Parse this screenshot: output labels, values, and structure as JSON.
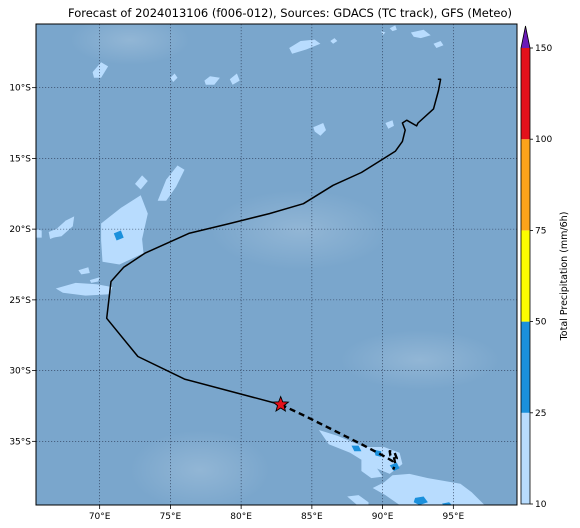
{
  "title": "Forecast of 2024013106 (f006-012), Sources: GDACS (TC track), GFS (Meteo)",
  "map": {
    "lon_range": [
      65.5,
      99.5
    ],
    "lat_range": [
      -39.5,
      -5.5
    ],
    "lon_ticks": [
      {
        "value": 70,
        "label": "70°E"
      },
      {
        "value": 75,
        "label": "75°E"
      },
      {
        "value": 80,
        "label": "80°E"
      },
      {
        "value": 85,
        "label": "85°E"
      },
      {
        "value": 90,
        "label": "90°E"
      },
      {
        "value": 95,
        "label": "95°E"
      }
    ],
    "lat_ticks": [
      {
        "value": -10,
        "label": "10°S"
      },
      {
        "value": -15,
        "label": "15°S"
      },
      {
        "value": -20,
        "label": "20°S"
      },
      {
        "value": -25,
        "label": "25°S"
      },
      {
        "value": -30,
        "label": "30°S"
      },
      {
        "value": -35,
        "label": "35°S"
      }
    ],
    "ocean_color": "#7aa6cc",
    "grid_style": "dotted"
  },
  "track": {
    "past": [
      [
        93.9,
        -9.4
      ],
      [
        94.1,
        -9.4
      ],
      [
        93.95,
        -10.2
      ],
      [
        93.6,
        -11.5
      ],
      [
        92.5,
        -12.5
      ],
      [
        92.4,
        -12.7
      ],
      [
        91.7,
        -12.3
      ],
      [
        91.4,
        -12.5
      ],
      [
        91.6,
        -13.0
      ],
      [
        91.4,
        -13.8
      ],
      [
        90.9,
        -14.5
      ],
      [
        88.5,
        -16.0
      ],
      [
        86.5,
        -16.9
      ],
      [
        84.4,
        -18.2
      ],
      [
        82.0,
        -18.9
      ],
      [
        79.2,
        -19.6
      ],
      [
        76.3,
        -20.3
      ],
      [
        73.2,
        -21.7
      ],
      [
        71.7,
        -22.7
      ],
      [
        70.8,
        -23.7
      ],
      [
        70.5,
        -26.3
      ],
      [
        72.7,
        -29.0
      ],
      [
        76.0,
        -30.6
      ],
      [
        82.8,
        -32.4
      ]
    ],
    "forecast": [
      [
        82.8,
        -32.4
      ],
      [
        84.5,
        -33.2
      ],
      [
        86.5,
        -34.2
      ],
      [
        88.5,
        -35.2
      ],
      [
        90.2,
        -36.1
      ],
      [
        90.7,
        -36.4
      ],
      [
        91.0,
        -36.2
      ],
      [
        90.85,
        -35.8
      ],
      [
        90.5,
        -35.7
      ],
      [
        90.55,
        -36.0
      ],
      [
        90.8,
        -36.1
      ],
      [
        90.9,
        -36.6
      ],
      [
        90.75,
        -37.0
      ]
    ],
    "current_position": {
      "lon": 82.8,
      "lat": -32.4
    },
    "past_color": "#000000",
    "marker_color": "#e3111b"
  },
  "precip_blobs": [
    {
      "level": 1,
      "pts": [
        [
          70.1,
          -19.6
        ],
        [
          71.5,
          -18.5
        ],
        [
          72.9,
          -17.6
        ],
        [
          73.4,
          -18.9
        ],
        [
          73.0,
          -20.7
        ],
        [
          73.1,
          -21.7
        ],
        [
          71.4,
          -22.5
        ],
        [
          70.2,
          -22.3
        ],
        [
          70.1,
          -20.8
        ]
      ]
    },
    {
      "level": 1,
      "pts": [
        [
          74.1,
          -18.0
        ],
        [
          74.7,
          -16.5
        ],
        [
          75.5,
          -15.5
        ],
        [
          76.0,
          -15.8
        ],
        [
          75.4,
          -17.0
        ],
        [
          74.7,
          -18.0
        ]
      ]
    },
    {
      "level": 1,
      "pts": [
        [
          72.5,
          -16.8
        ],
        [
          73.0,
          -16.2
        ],
        [
          73.4,
          -16.6
        ],
        [
          72.9,
          -17.2
        ]
      ]
    },
    {
      "level": 1,
      "pts": [
        [
          66.7,
          -20.2
        ],
        [
          67.6,
          -19.4
        ],
        [
          68.2,
          -19.1
        ],
        [
          68.1,
          -19.8
        ],
        [
          67.3,
          -20.5
        ],
        [
          66.7,
          -20.6
        ]
      ]
    },
    {
      "level": 1,
      "pts": [
        [
          65.5,
          -20.0
        ],
        [
          65.9,
          -20.1
        ],
        [
          65.9,
          -20.6
        ],
        [
          65.5,
          -20.6
        ]
      ]
    },
    {
      "level": 1,
      "pts": [
        [
          66.9,
          -24.2
        ],
        [
          68.3,
          -23.8
        ],
        [
          69.8,
          -23.9
        ],
        [
          70.9,
          -24.1
        ],
        [
          70.7,
          -24.6
        ],
        [
          69.0,
          -24.7
        ],
        [
          67.4,
          -24.5
        ]
      ]
    },
    {
      "level": 1,
      "pts": [
        [
          68.5,
          -22.9
        ],
        [
          69.2,
          -22.7
        ],
        [
          69.3,
          -23.1
        ],
        [
          68.7,
          -23.2
        ]
      ]
    },
    {
      "level": 1,
      "pts": [
        [
          69.3,
          -23.6
        ],
        [
          70.0,
          -23.4
        ],
        [
          69.9,
          -23.7
        ],
        [
          69.4,
          -23.8
        ]
      ]
    },
    {
      "level": 1,
      "pts": [
        [
          69.5,
          -8.9
        ],
        [
          70.1,
          -8.2
        ],
        [
          70.6,
          -8.5
        ],
        [
          70.1,
          -9.3
        ],
        [
          69.6,
          -9.3
        ]
      ]
    },
    {
      "level": 1,
      "pts": [
        [
          77.4,
          -9.5
        ],
        [
          77.8,
          -9.2
        ],
        [
          78.5,
          -9.3
        ],
        [
          78.1,
          -9.8
        ],
        [
          77.5,
          -9.8
        ]
      ]
    },
    {
      "level": 1,
      "pts": [
        [
          79.2,
          -9.4
        ],
        [
          79.7,
          -9.0
        ],
        [
          79.9,
          -9.5
        ],
        [
          79.4,
          -9.8
        ]
      ]
    },
    {
      "level": 1,
      "pts": [
        [
          75.0,
          -9.3
        ],
        [
          75.3,
          -9.0
        ],
        [
          75.5,
          -9.3
        ],
        [
          75.2,
          -9.6
        ]
      ]
    },
    {
      "level": 1,
      "pts": [
        [
          83.4,
          -7.2
        ],
        [
          84.2,
          -6.7
        ],
        [
          85.2,
          -6.6
        ],
        [
          85.6,
          -6.9
        ],
        [
          84.6,
          -7.3
        ],
        [
          83.6,
          -7.6
        ]
      ]
    },
    {
      "level": 1,
      "pts": [
        [
          86.3,
          -6.7
        ],
        [
          86.6,
          -6.5
        ],
        [
          86.8,
          -6.7
        ],
        [
          86.5,
          -6.9
        ]
      ]
    },
    {
      "level": 1,
      "pts": [
        [
          92.0,
          -6.1
        ],
        [
          92.9,
          -5.9
        ],
        [
          93.4,
          -6.3
        ],
        [
          92.7,
          -6.5
        ],
        [
          92.2,
          -6.4
        ]
      ]
    },
    {
      "level": 1,
      "pts": [
        [
          93.6,
          -6.9
        ],
        [
          94.1,
          -6.7
        ],
        [
          94.3,
          -7.0
        ],
        [
          93.8,
          -7.2
        ]
      ]
    },
    {
      "level": 1,
      "pts": [
        [
          90.5,
          -5.8
        ],
        [
          90.9,
          -5.6
        ],
        [
          91.0,
          -5.9
        ],
        [
          90.7,
          -6.0
        ]
      ]
    },
    {
      "level": 1,
      "pts": [
        [
          89.9,
          -6.0
        ],
        [
          90.2,
          -6.1
        ],
        [
          90.0,
          -6.3
        ]
      ]
    },
    {
      "level": 1,
      "pts": [
        [
          85.1,
          -12.8
        ],
        [
          85.8,
          -12.5
        ],
        [
          86.0,
          -13.0
        ],
        [
          85.6,
          -13.4
        ],
        [
          85.2,
          -13.1
        ]
      ]
    },
    {
      "level": 1,
      "pts": [
        [
          90.2,
          -12.5
        ],
        [
          90.7,
          -12.3
        ],
        [
          90.8,
          -12.7
        ],
        [
          90.4,
          -12.9
        ]
      ]
    },
    {
      "level": 1,
      "pts": [
        [
          66.4,
          -20.2
        ],
        [
          66.9,
          -20.0
        ],
        [
          67.0,
          -20.5
        ],
        [
          66.5,
          -20.7
        ]
      ]
    },
    {
      "level": 1,
      "pts": [
        [
          70.2,
          -21.0
        ],
        [
          70.7,
          -20.8
        ],
        [
          70.8,
          -21.2
        ],
        [
          70.3,
          -21.4
        ]
      ]
    },
    {
      "level": 1,
      "pts": [
        [
          85.5,
          -34.2
        ],
        [
          86.8,
          -34.6
        ],
        [
          88.7,
          -35.4
        ],
        [
          90.1,
          -35.4
        ],
        [
          91.2,
          -35.8
        ],
        [
          91.4,
          -36.6
        ],
        [
          90.5,
          -37.3
        ],
        [
          89.3,
          -36.8
        ],
        [
          87.7,
          -35.8
        ],
        [
          86.2,
          -35.2
        ]
      ]
    },
    {
      "level": 1,
      "pts": [
        [
          88.5,
          -36.3
        ],
        [
          89.4,
          -36.6
        ],
        [
          90.0,
          -37.5
        ],
        [
          89.2,
          -37.6
        ],
        [
          88.5,
          -37.1
        ]
      ]
    },
    {
      "level": 1,
      "pts": [
        [
          90.7,
          -37.4
        ],
        [
          91.9,
          -37.3
        ],
        [
          93.2,
          -37.6
        ],
        [
          95.5,
          -38.0
        ],
        [
          96.3,
          -38.6
        ],
        [
          97.2,
          -39.5
        ],
        [
          91.2,
          -39.5
        ],
        [
          90.2,
          -38.8
        ],
        [
          89.3,
          -38.3
        ],
        [
          90.1,
          -37.9
        ]
      ]
    },
    {
      "level": 1,
      "pts": [
        [
          87.5,
          -38.9
        ],
        [
          88.3,
          -38.8
        ],
        [
          89.0,
          -39.3
        ],
        [
          89.0,
          -39.5
        ],
        [
          88.2,
          -39.5
        ]
      ]
    },
    {
      "level": 2,
      "pts": [
        [
          71.0,
          -20.3
        ],
        [
          71.5,
          -20.1
        ],
        [
          71.7,
          -20.6
        ],
        [
          71.2,
          -20.8
        ]
      ]
    },
    {
      "level": 2,
      "pts": [
        [
          87.8,
          -35.3
        ],
        [
          88.3,
          -35.3
        ],
        [
          88.5,
          -35.7
        ],
        [
          88.0,
          -35.7
        ]
      ]
    },
    {
      "level": 2,
      "pts": [
        [
          89.4,
          -35.6
        ],
        [
          89.9,
          -35.7
        ],
        [
          89.9,
          -36.1
        ],
        [
          89.5,
          -36.0
        ]
      ]
    },
    {
      "level": 2,
      "pts": [
        [
          90.5,
          -36.7
        ],
        [
          91.0,
          -36.5
        ],
        [
          91.2,
          -36.9
        ],
        [
          90.8,
          -37.1
        ]
      ]
    },
    {
      "level": 2,
      "pts": [
        [
          92.3,
          -39.0
        ],
        [
          92.9,
          -38.9
        ],
        [
          93.2,
          -39.3
        ],
        [
          92.6,
          -39.5
        ],
        [
          92.2,
          -39.3
        ]
      ]
    },
    {
      "level": 2,
      "pts": [
        [
          94.2,
          -39.4
        ],
        [
          94.7,
          -39.3
        ],
        [
          94.9,
          -39.5
        ],
        [
          94.3,
          -39.5
        ]
      ]
    }
  ],
  "colorbar": {
    "label": "Total Precipitation (mm/6h)",
    "levels": [
      10,
      25,
      50,
      75,
      100,
      150
    ],
    "colors": [
      "#b8dcfe",
      "#1a90dc",
      "#fefe00",
      "#fea31a",
      "#e3111b"
    ],
    "extend_color": "#6a1ab8"
  }
}
